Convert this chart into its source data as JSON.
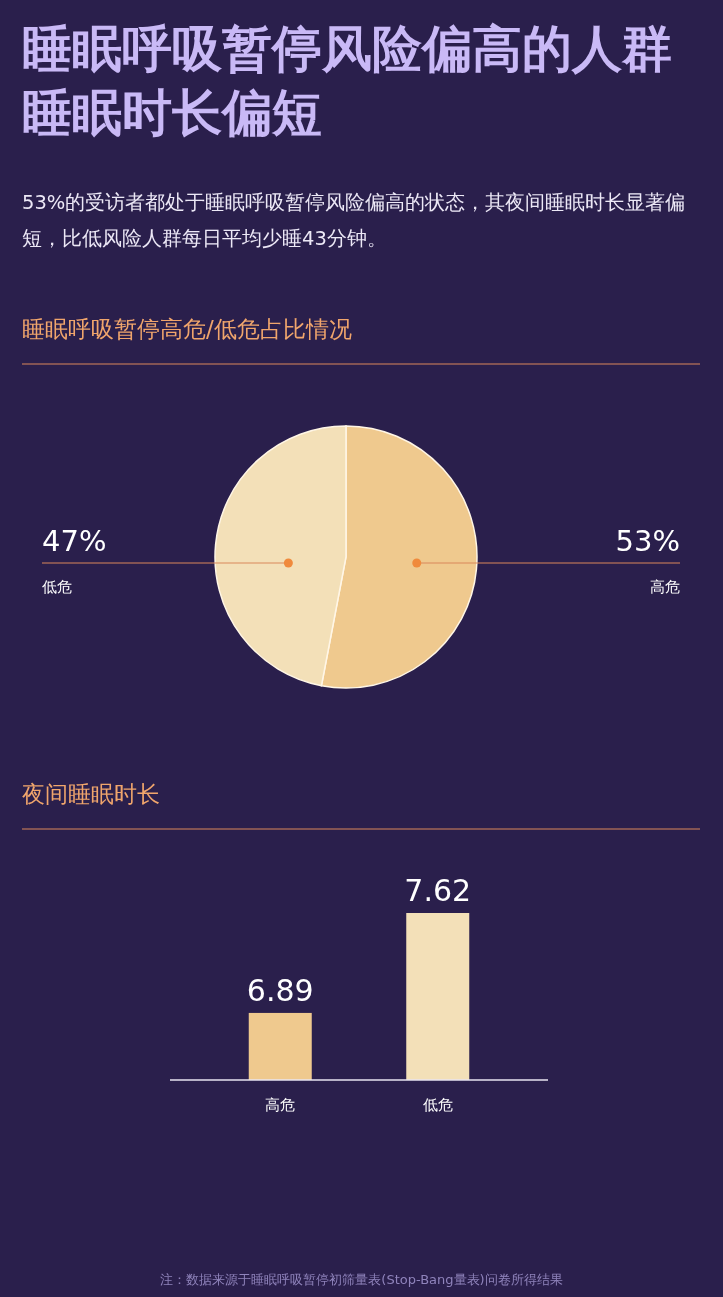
{
  "chart_data": [
    {
      "type": "other",
      "title": "睡眠呼吸暂停风险偏高的人群睡眠时长偏短",
      "subtitle": "53%的受访者都处于睡眠呼吸暂停风险偏高的状态，其夜间睡眠时长显著偏短，比低风险人群每日平均少睡43分钟。"
    },
    {
      "type": "pie",
      "title": "睡眠呼吸暂停高危/低危占比情况",
      "categories": [
        "高危",
        "低危"
      ],
      "values": [
        53,
        47
      ],
      "colors": [
        "#efc98e",
        "#f3e0b8"
      ],
      "value_labels": [
        "53%",
        "47%"
      ]
    },
    {
      "type": "bar",
      "title": "夜间睡眠时长",
      "categories": [
        "高危",
        "低危"
      ],
      "values": [
        6.89,
        7.62
      ],
      "colors": [
        "#efc98e",
        "#f3e0b8"
      ],
      "ylim": [
        6.4,
        7.62
      ],
      "data_labels": true,
      "tick_labels": "x",
      "annotations": [
        "注：数据来源于睡眠呼吸暂停初筛量表(Stop-Bang量表)问卷所得结果"
      ]
    }
  ]
}
